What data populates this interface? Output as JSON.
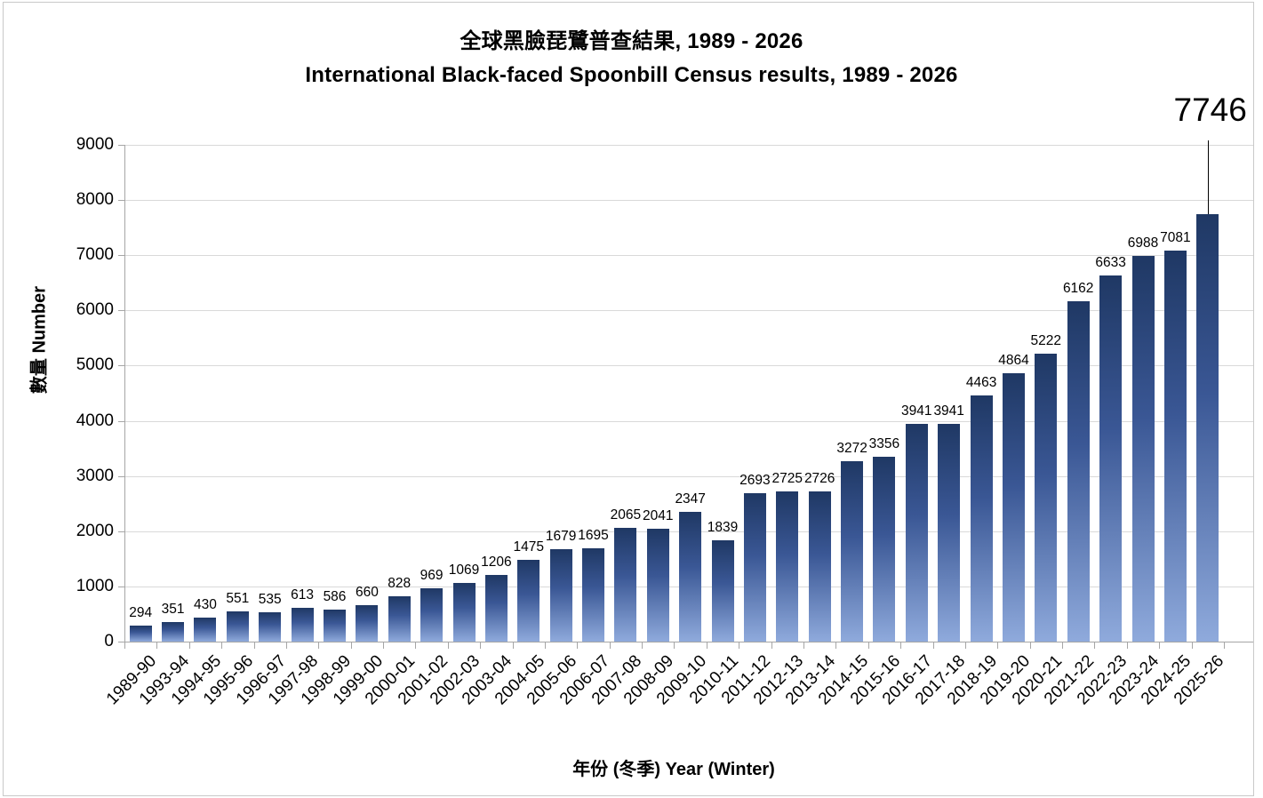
{
  "titles": {
    "zh": "全球黑臉琵鷺普查結果, 1989 - 2026",
    "en": "International Black-faced Spoonbill Census results, 1989 - 2026"
  },
  "y_axis": {
    "label": "數量 Number"
  },
  "x_axis": {
    "label": "年份 (冬季) Year (Winter)"
  },
  "colors": {
    "bar_gradient_top": "#1f3864",
    "bar_gradient_mid": "#3a5795",
    "bar_gradient_bottom": "#8faadc",
    "gridline": "#d9d9d9",
    "axis": "#a6a6a6",
    "text": "#000000",
    "frame_border": "#c9c9c9"
  },
  "chart_data": {
    "type": "bar",
    "title": "全球黑臉琵鷺普查結果, 1989 - 2026",
    "subtitle": "International Black-faced Spoonbill Census results, 1989 - 2026",
    "xlabel": "年份 (冬季) Year (Winter)",
    "ylabel": "數量 Number",
    "ylim": [
      0,
      9000
    ],
    "ytick_interval": 1000,
    "grid": true,
    "legend": false,
    "data_labels": true,
    "categories": [
      "1989-90",
      "1993-94",
      "1994-95",
      "1995-96",
      "1996-97",
      "1997-98",
      "1998-99",
      "1999-00",
      "2000-01",
      "2001-02",
      "2002-03",
      "2003-04",
      "2004-05",
      "2005-06",
      "2006-07",
      "2007-08",
      "2008-09",
      "2009-10",
      "2010-11",
      "2011-12",
      "2012-13",
      "2013-14",
      "2014-15",
      "2015-16",
      "2016-17",
      "2017-18",
      "2018-19",
      "2019-20",
      "2020-21",
      "2021-22",
      "2022-23",
      "2023-24",
      "2024-25",
      "2025-26"
    ],
    "values": [
      294,
      351,
      430,
      551,
      535,
      613,
      586,
      660,
      828,
      969,
      1069,
      1206,
      1475,
      1679,
      1695,
      2065,
      2041,
      2347,
      1839,
      2693,
      2725,
      2726,
      3272,
      3356,
      3941,
      3941,
      4463,
      4864,
      5222,
      6162,
      6633,
      6988,
      7081,
      7746
    ],
    "callout": {
      "index": 33,
      "label": "7746"
    }
  }
}
